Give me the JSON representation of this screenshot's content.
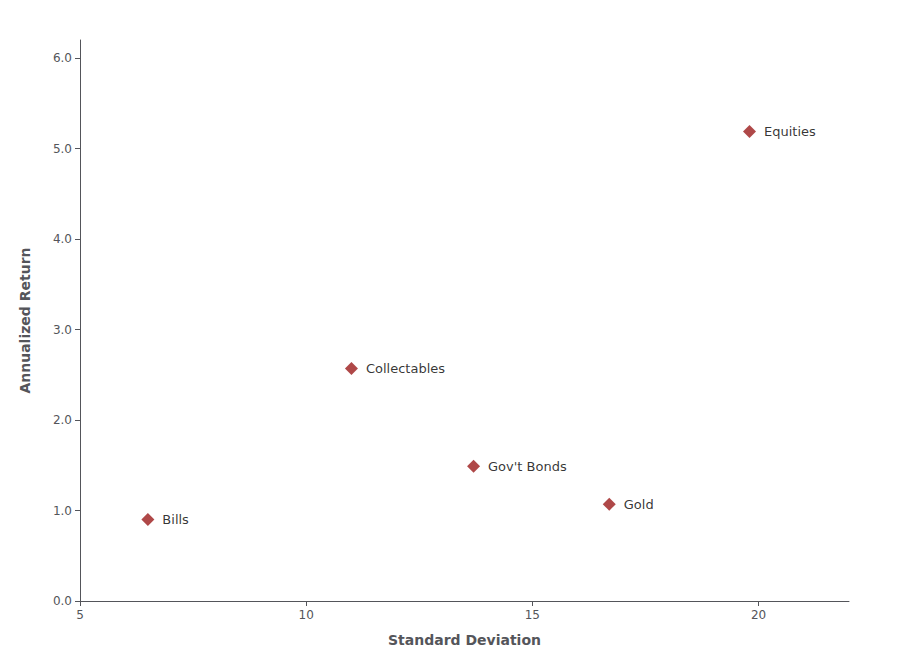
{
  "chart_data": {
    "type": "scatter",
    "x": [
      6.5,
      11.0,
      13.7,
      16.7,
      19.8
    ],
    "values": [
      0.9,
      2.57,
      1.49,
      1.07,
      5.19
    ],
    "labels": [
      "Bills",
      "Collectables",
      "Gov't Bonds",
      "Gold",
      "Equities"
    ],
    "xlabel": "Standard Deviation",
    "ylabel": "Annualized Return",
    "xlim": [
      5,
      22
    ],
    "ylim": [
      0.0,
      6.2
    ],
    "xticks": [
      5,
      10,
      15,
      20
    ],
    "yticks": [
      {
        "value": 0.0,
        "label": "0.0"
      },
      {
        "value": 1.0,
        "label": "1.0"
      },
      {
        "value": 2.0,
        "label": "2.0"
      },
      {
        "value": 3.0,
        "label": "3.0"
      },
      {
        "value": 4.0,
        "label": "4.0"
      },
      {
        "value": 5.0,
        "label": "5.0"
      },
      {
        "value": 6.0,
        "label": "6.0"
      }
    ],
    "color": "#9B1A1A",
    "marker": "diamond",
    "grid": false
  }
}
